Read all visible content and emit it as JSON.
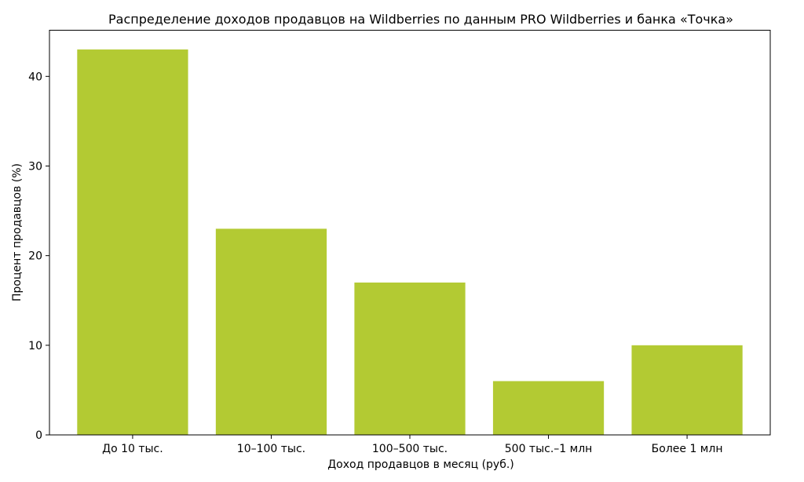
{
  "chart_data": {
    "type": "bar",
    "title": "Распределение доходов продавцов на Wildberries по данным PRO Wildberries и банка «Точка»",
    "xlabel": "Доход продавцов в месяц (руб.)",
    "ylabel": "Процент продавцов (%)",
    "categories": [
      "До 10 тыс.",
      "10–100 тыс.",
      "100–500 тыс.",
      "500 тыс.–1 млн",
      "Более 1 млн"
    ],
    "values": [
      43,
      23,
      17,
      6,
      10
    ],
    "ylim": [
      0,
      45.15
    ],
    "yticks": [
      0,
      10,
      20,
      30,
      40
    ],
    "grid": false,
    "bar_color": "#b3ca33"
  }
}
